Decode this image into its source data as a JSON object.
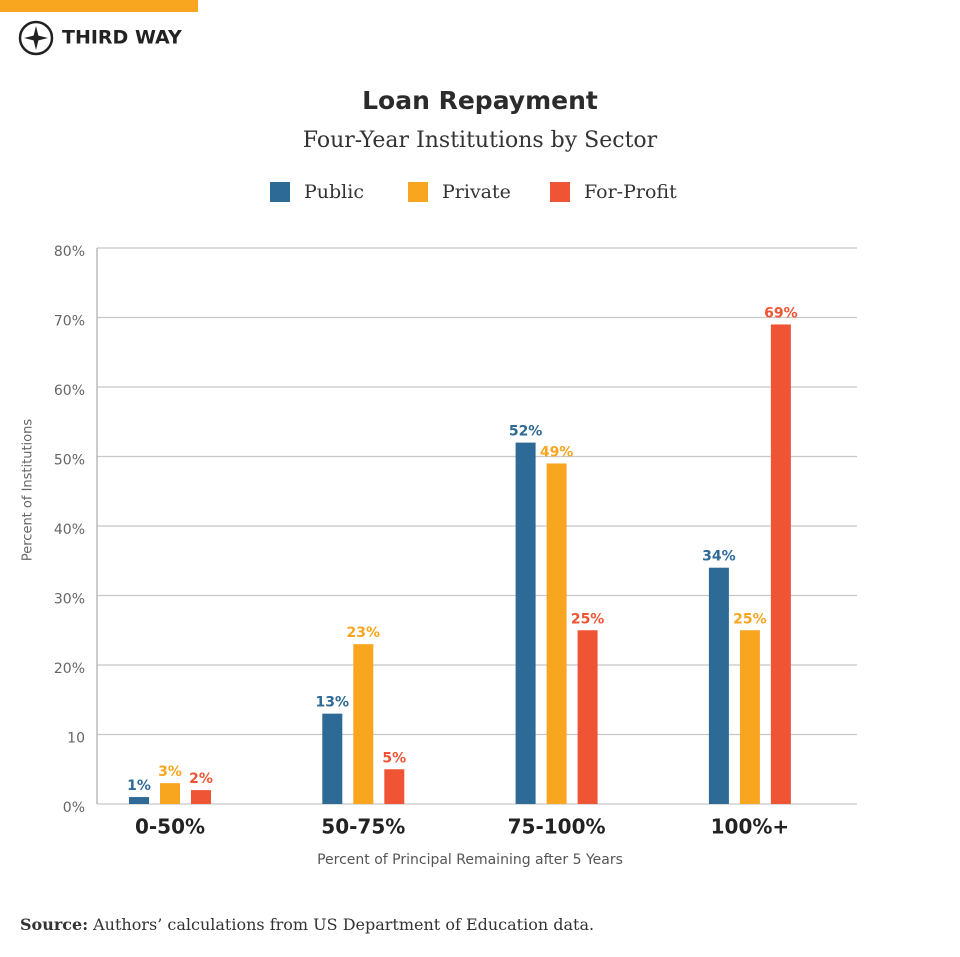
{
  "logo": "THIRD WAY",
  "chart_data": {
    "type": "bar",
    "title": "Loan Repayment",
    "subtitle": "Four-Year Institutions by Sector",
    "x_label": "Percent of Principal Remaining after 5 Years",
    "y_label": "Percent of Institutions",
    "categories": [
      "0-50%",
      "50-75%",
      "75-100%",
      "100%+"
    ],
    "series": [
      {
        "name": "Public",
        "color": "#2e6a96",
        "values": [
          1,
          13,
          52,
          34
        ],
        "value_labels": [
          "1%",
          "13%",
          "52%",
          "34%"
        ]
      },
      {
        "name": "Private",
        "color": "#f8a620",
        "values": [
          3,
          23,
          49,
          25
        ],
        "value_labels": [
          "3%",
          "23%",
          "49%",
          "25%"
        ]
      },
      {
        "name": "For-Profit",
        "color": "#ef5534",
        "values": [
          2,
          5,
          25,
          69
        ],
        "value_labels": [
          "2%",
          "5%",
          "25%",
          "69%"
        ]
      }
    ],
    "ylim": [
      0,
      80
    ],
    "yticks": [
      {
        "value": 0,
        "label": "0%"
      },
      {
        "value": 10,
        "label": "10"
      },
      {
        "value": 20,
        "label": "20%"
      },
      {
        "value": 30,
        "label": "30%"
      },
      {
        "value": 40,
        "label": "40%"
      },
      {
        "value": 50,
        "label": "50%"
      },
      {
        "value": 60,
        "label": "60%"
      },
      {
        "value": 70,
        "label": "70%"
      },
      {
        "value": 80,
        "label": "80%"
      }
    ],
    "grid": true,
    "legend": "top"
  },
  "source": {
    "label": "Source:",
    "text": "Authors’ calculations from US Department of Education data."
  }
}
